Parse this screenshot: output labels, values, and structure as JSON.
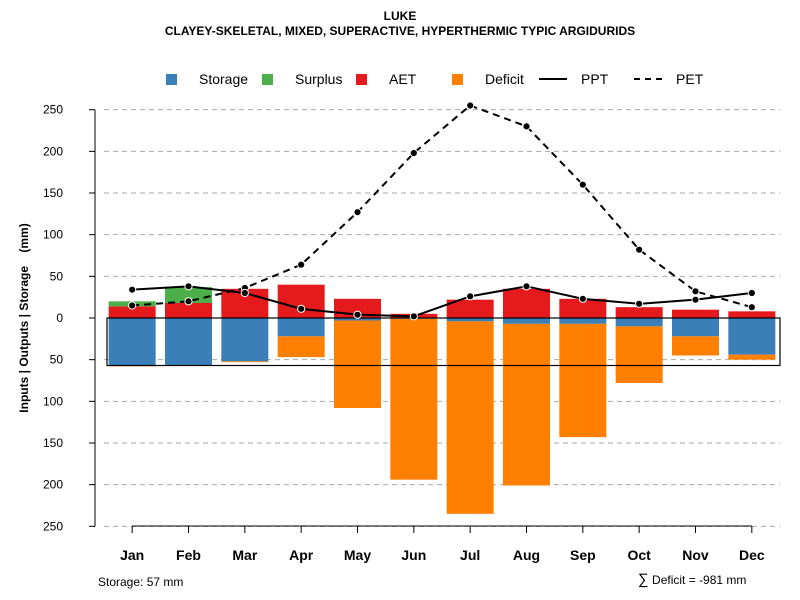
{
  "title": "LUKE",
  "subtitle": "CLAYEY-SKELETAL, MIXED, SUPERACTIVE, HYPERTHERMIC TYPIC ARGIDURIDS",
  "legend": {
    "storage": "Storage",
    "surplus": "Surplus",
    "aet": "AET",
    "deficit": "Deficit",
    "ppt": "PPT",
    "pet": "PET"
  },
  "footer": {
    "storage_note": "Storage: 57 mm",
    "deficit_symbol": "∑",
    "deficit_note": "Deficit = -981 mm"
  },
  "colors": {
    "storage": "#3A7FB8",
    "surplus": "#4DAF4A",
    "aet": "#E41A1C",
    "deficit": "#FF7F00"
  },
  "chart_data": {
    "type": "bar",
    "ylabel": "Inputs | Outputs | Storage    (mm)",
    "ylim": [
      -250,
      270
    ],
    "yticks": [
      250,
      200,
      150,
      100,
      50,
      0,
      -50,
      -100,
      -150,
      -200,
      -250
    ],
    "ytick_labels": [
      "250",
      "200",
      "150",
      "100",
      "50",
      "0",
      "50",
      "100",
      "150",
      "200",
      "250"
    ],
    "categories": [
      "Jan",
      "Feb",
      "Mar",
      "Apr",
      "May",
      "Jun",
      "Jul",
      "Aug",
      "Sep",
      "Oct",
      "Nov",
      "Dec"
    ],
    "series": [
      {
        "name": "AET",
        "values": [
          14,
          18,
          35,
          40,
          23,
          5,
          22,
          35,
          23,
          13,
          10,
          8
        ]
      },
      {
        "name": "Surplus",
        "values": [
          6,
          19,
          0,
          0,
          0,
          0,
          0,
          0,
          0,
          0,
          0,
          0
        ]
      },
      {
        "name": "Storage",
        "values": [
          57,
          57,
          52,
          22,
          3,
          1,
          4,
          7,
          7,
          10,
          22,
          44
        ]
      },
      {
        "name": "Deficit",
        "values": [
          1,
          0,
          1,
          25,
          105,
          193,
          231,
          194,
          136,
          68,
          23,
          6
        ]
      },
      {
        "name": "PPT",
        "values": [
          34,
          38,
          30,
          11,
          4,
          2,
          26,
          38,
          23,
          17,
          22,
          30
        ]
      },
      {
        "name": "PET",
        "values": [
          15,
          20,
          36,
          64,
          127,
          198,
          255,
          230,
          160,
          82,
          32,
          13
        ]
      }
    ],
    "storage_capacity": 57,
    "grid": true,
    "legend_position": "top"
  }
}
